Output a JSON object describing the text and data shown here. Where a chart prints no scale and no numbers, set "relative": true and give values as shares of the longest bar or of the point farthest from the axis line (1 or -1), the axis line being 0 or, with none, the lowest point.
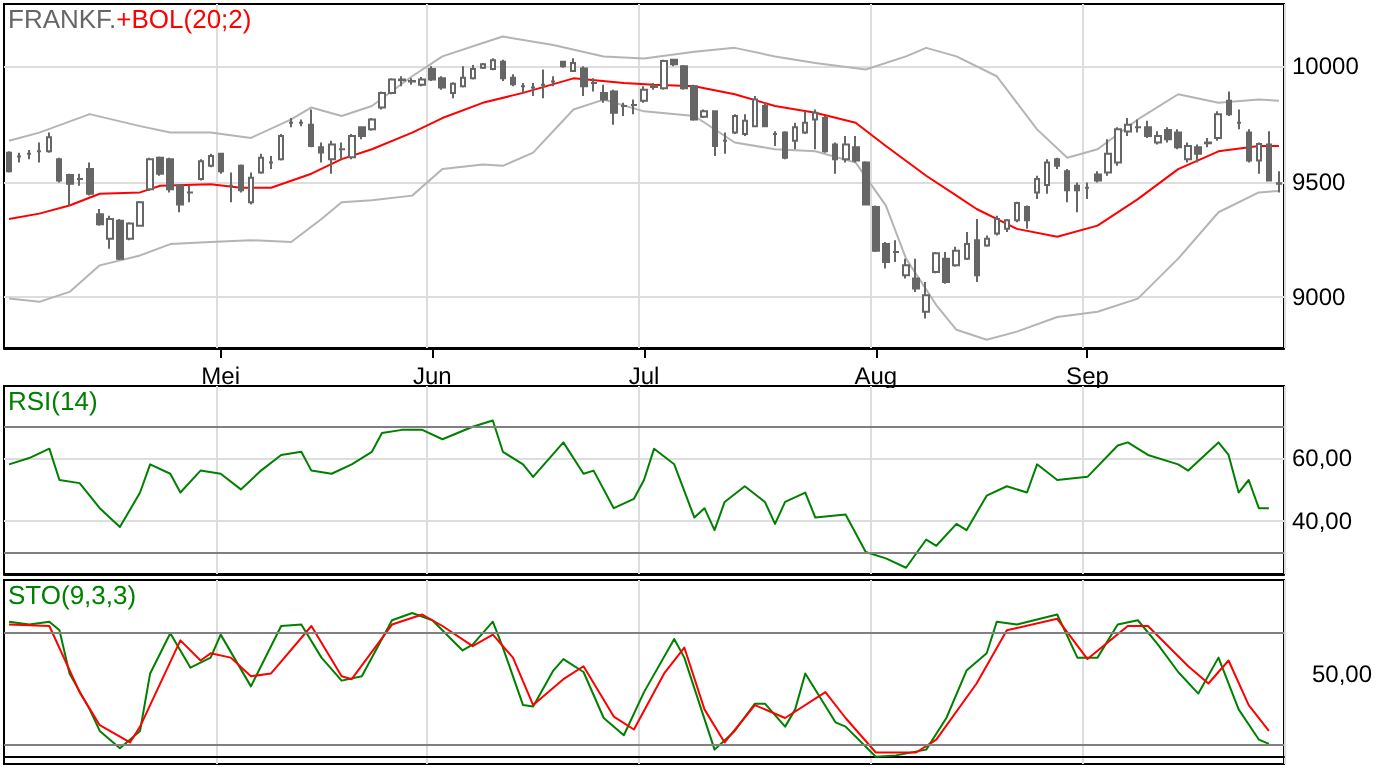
{
  "chart_data": [
    {
      "type": "candlestick",
      "title": "FRANKF.",
      "color": "#666666",
      "marker": "none",
      "grid": true,
      "categories": [
        null,
        null,
        null,
        null,
        null,
        null,
        null,
        null,
        null,
        null,
        null,
        null,
        null,
        null,
        null,
        null,
        null,
        null,
        null,
        null,
        null,
        "Mei",
        null,
        null,
        null,
        null,
        null,
        null,
        null,
        null,
        null,
        null,
        null,
        null,
        null,
        null,
        null,
        null,
        null,
        null,
        null,
        null,
        "Jun",
        null,
        null,
        null,
        null,
        null,
        null,
        null,
        null,
        null,
        null,
        null,
        null,
        null,
        null,
        null,
        null,
        null,
        null,
        null,
        null,
        "Jul",
        null,
        null,
        null,
        null,
        null,
        null,
        null,
        null,
        null,
        null,
        null,
        null,
        null,
        null,
        null,
        null,
        null,
        null,
        null,
        null,
        null,
        null,
        "Aug",
        null,
        null,
        null,
        null,
        null,
        null,
        null,
        null,
        null,
        null,
        null,
        null,
        null,
        null,
        null,
        null,
        null,
        null,
        null,
        null,
        "Sep",
        null,
        null,
        null,
        null,
        null,
        null,
        null,
        null,
        null,
        null,
        null,
        null,
        null,
        null,
        null,
        null,
        null,
        null,
        null
      ],
      "ylim": [
        8780,
        10270
      ],
      "yticks": [
        9000,
        9500,
        10000
      ],
      "ohlc": [
        [
          9626,
          9632,
          9540,
          9546
        ],
        [
          9609,
          9626,
          9583,
          9609
        ],
        [
          9621,
          9638,
          9598,
          9621
        ],
        [
          9632,
          9670,
          9583,
          9632
        ],
        [
          9632,
          9713,
          9626,
          9693
        ],
        [
          9598,
          9604,
          9497,
          9506
        ],
        [
          9529,
          9535,
          9397,
          9491
        ],
        [
          9512,
          9535,
          9483,
          9512
        ],
        [
          9555,
          9583,
          9440,
          9448
        ],
        [
          9359,
          9382,
          9310,
          9316
        ],
        [
          9253,
          9353,
          9210,
          9339
        ],
        [
          9331,
          9339,
          9161,
          9167
        ],
        [
          9253,
          9325,
          9247,
          9319
        ],
        [
          9310,
          9417,
          9305,
          9411
        ],
        [
          9468,
          9604,
          9460,
          9598
        ],
        [
          9604,
          9609,
          9526,
          9535
        ],
        [
          9598,
          9604,
          9454,
          9468
        ],
        [
          9483,
          9489,
          9368,
          9402
        ],
        [
          9454,
          9483,
          9411,
          9454
        ],
        [
          9512,
          9598,
          9506,
          9589
        ],
        [
          9569,
          9621,
          9563,
          9612
        ],
        [
          9621,
          9626,
          9535,
          9546
        ],
        [
          9483,
          9540,
          9411,
          9483
        ],
        [
          9569,
          9575,
          9454,
          9463
        ],
        [
          9411,
          9540,
          9402,
          9517
        ],
        [
          9540,
          9621,
          9535,
          9604
        ],
        [
          9583,
          9612,
          9555,
          9583
        ],
        [
          9598,
          9707,
          9592,
          9698
        ],
        [
          9756,
          9776,
          9736,
          9756
        ],
        [
          9756,
          9770,
          9741,
          9756
        ],
        [
          9747,
          9813,
          9650,
          9655
        ],
        [
          9650,
          9670,
          9583,
          9627
        ],
        [
          9598,
          9678,
          9535,
          9661
        ],
        [
          9641,
          9670,
          9598,
          9641
        ],
        [
          9606,
          9707,
          9598,
          9698
        ],
        [
          9736,
          9741,
          9684,
          9698
        ],
        [
          9727,
          9776,
          9721,
          9770
        ],
        [
          9822,
          9891,
          9813,
          9885
        ],
        [
          9885,
          9948,
          9879,
          9943
        ],
        [
          9943,
          9957,
          9914,
          9940
        ],
        [
          9937,
          9948,
          9920,
          9934
        ],
        [
          9920,
          9954,
          9914,
          9943
        ],
        [
          9989,
          10000,
          9937,
          9943
        ],
        [
          9948,
          9957,
          9899,
          9908
        ],
        [
          9885,
          9931,
          9862,
          9925
        ],
        [
          9914,
          10000,
          9908,
          9951
        ],
        [
          9948,
          10006,
          9943,
          9989
        ],
        [
          9994,
          10014,
          9989,
          10009
        ],
        [
          9989,
          10035,
          9983,
          10026
        ],
        [
          10020,
          10029,
          9937,
          9948
        ],
        [
          9951,
          9966,
          9914,
          9922
        ],
        [
          9914,
          9928,
          9885,
          9914
        ],
        [
          9908,
          9928,
          9871,
          9908
        ],
        [
          9920,
          9986,
          9862,
          9920
        ],
        [
          9934,
          9957,
          9914,
          9934
        ],
        [
          10020,
          10023,
          9994,
          10000
        ],
        [
          9980,
          10035,
          9977,
          10014
        ],
        [
          9991,
          10000,
          9871,
          9914
        ],
        [
          9928,
          9948,
          9891,
          9928
        ],
        [
          9885,
          9920,
          9842,
          9856
        ],
        [
          9891,
          9899,
          9747,
          9799
        ],
        [
          9828,
          9842,
          9785,
          9828
        ],
        [
          9833,
          9856,
          9793,
          9833
        ],
        [
          9851,
          9914,
          9842,
          9899
        ],
        [
          9914,
          9928,
          9899,
          9911
        ],
        [
          9905,
          10029,
          9899,
          10023
        ],
        [
          10029,
          10029,
          10000,
          10009
        ],
        [
          10000,
          10006,
          9899,
          9905
        ],
        [
          9914,
          9920,
          9764,
          9770
        ],
        [
          9782,
          9813,
          9776,
          9805
        ],
        [
          9805,
          9810,
          9612,
          9655
        ],
        [
          9678,
          9713,
          9621,
          9678
        ],
        [
          9713,
          9793,
          9707,
          9785
        ],
        [
          9707,
          9793,
          9698,
          9764
        ],
        [
          9741,
          9871,
          9736,
          9856
        ],
        [
          9828,
          9842,
          9736,
          9741
        ],
        [
          9707,
          9719,
          9655,
          9707
        ],
        [
          9713,
          9719,
          9598,
          9604
        ],
        [
          9678,
          9756,
          9641,
          9736
        ],
        [
          9713,
          9805,
          9707,
          9756
        ],
        [
          9770,
          9813,
          9641,
          9799
        ],
        [
          9776,
          9785,
          9626,
          9632
        ],
        [
          9661,
          9670,
          9535,
          9598
        ],
        [
          9598,
          9698,
          9583,
          9661
        ],
        [
          9650,
          9698,
          9583,
          9592
        ],
        [
          9583,
          9589,
          9397,
          9402
        ],
        [
          9391,
          9397,
          9196,
          9201
        ],
        [
          9230,
          9239,
          9124,
          9152
        ],
        [
          9196,
          9247,
          9152,
          9196
        ],
        [
          9095,
          9167,
          9081,
          9138
        ],
        [
          9081,
          9167,
          9023,
          9038
        ],
        [
          8937,
          9066,
          8908,
          9009
        ],
        [
          9109,
          9196,
          9104,
          9190
        ],
        [
          9167,
          9196,
          9058,
          9066
        ],
        [
          9138,
          9219,
          9132,
          9201
        ],
        [
          9167,
          9282,
          9161,
          9230
        ],
        [
          9247,
          9339,
          9066,
          9095
        ],
        [
          9224,
          9267,
          9219,
          9253
        ],
        [
          9276,
          9353,
          9267,
          9339
        ],
        [
          9296,
          9339,
          9282,
          9333
        ],
        [
          9333,
          9414,
          9325,
          9408
        ],
        [
          9391,
          9397,
          9296,
          9333
        ],
        [
          9454,
          9526,
          9425,
          9512
        ],
        [
          9486,
          9598,
          9448,
          9583
        ],
        [
          9598,
          9604,
          9555,
          9569
        ],
        [
          9546,
          9555,
          9411,
          9463
        ],
        [
          9483,
          9497,
          9368,
          9463
        ],
        [
          9474,
          9497,
          9425,
          9474
        ],
        [
          9532,
          9546,
          9497,
          9506
        ],
        [
          9540,
          9684,
          9526,
          9621
        ],
        [
          9583,
          9736,
          9569,
          9727
        ],
        [
          9718,
          9776,
          9698,
          9747
        ],
        [
          9736,
          9770,
          9713,
          9736
        ],
        [
          9736,
          9764,
          9690,
          9698
        ],
        [
          9670,
          9719,
          9661,
          9698
        ],
        [
          9724,
          9736,
          9670,
          9684
        ],
        [
          9713,
          9727,
          9641,
          9650
        ],
        [
          9598,
          9670,
          9583,
          9655
        ],
        [
          9650,
          9661,
          9583,
          9621
        ],
        [
          9670,
          9690,
          9650,
          9667
        ],
        [
          9690,
          9805,
          9678,
          9793
        ],
        [
          9851,
          9891,
          9785,
          9793
        ],
        [
          9756,
          9813,
          9727,
          9756
        ],
        [
          9713,
          9727,
          9583,
          9592
        ],
        [
          9592,
          9670,
          9535,
          9664
        ],
        [
          9661,
          9719,
          9506,
          9506
        ],
        [
          9494,
          9546,
          9454,
          9491
        ]
      ],
      "series": [
        {
          "type": "line",
          "color": "#b4b4b4",
          "values": [
            9678,
            null,
            null,
            9713,
            null,
            null,
            null,
            null,
            9793,
            null,
            null,
            null,
            null,
            9741,
            null,
            null,
            9713,
            null,
            null,
            null,
            9713,
            null,
            null,
            null,
            9690,
            null,
            null,
            null,
            9770,
            null,
            9822,
            null,
            null,
            9785,
            null,
            null,
            9828,
            null,
            null,
            null,
            9957,
            null,
            null,
            10043,
            null,
            null,
            null,
            10101,
            null,
            10129,
            null,
            null,
            null,
            null,
            10092,
            null,
            null,
            null,
            null,
            10043,
            null,
            null,
            null,
            10034,
            null,
            null,
            null,
            null,
            10063,
            null,
            null,
            null,
            10080,
            null,
            null,
            null,
            10043,
            null,
            null,
            null,
            10014,
            null,
            null,
            null,
            null,
            9986,
            null,
            null,
            null,
            10043,
            null,
            10080,
            null,
            null,
            10043,
            null,
            null,
            null,
            9957,
            null,
            null,
            null,
            9727,
            null,
            null,
            9604,
            null,
            null,
            9641,
            null,
            null,
            null,
            9770,
            null,
            null,
            null,
            9879,
            null,
            null,
            null,
            9842,
            null,
            null,
            null,
            9856,
            null,
            9851
          ]
        },
        {
          "type": "line",
          "color": "#b4b4b4",
          "values": [
            8994,
            null,
            null,
            8980,
            null,
            null,
            9023,
            null,
            null,
            9138,
            null,
            null,
            null,
            9181,
            null,
            null,
            9230,
            null,
            null,
            null,
            9239,
            null,
            null,
            null,
            9247,
            null,
            null,
            null,
            9239,
            null,
            null,
            9339,
            null,
            9411,
            null,
            null,
            9420,
            null,
            null,
            null,
            9440,
            null,
            null,
            9555,
            null,
            null,
            null,
            9575,
            null,
            9569,
            null,
            null,
            9626,
            null,
            null,
            null,
            9813,
            null,
            null,
            9856,
            null,
            null,
            null,
            9805,
            null,
            null,
            null,
            null,
            9785,
            null,
            null,
            null,
            9670,
            null,
            null,
            null,
            9641,
            null,
            null,
            null,
            9632,
            null,
            null,
            null,
            9583,
            null,
            null,
            9397,
            null,
            9167,
            null,
            null,
            8966,
            null,
            8859,
            null,
            null,
            8816,
            null,
            null,
            8851,
            null,
            null,
            null,
            8914,
            null,
            null,
            null,
            8937,
            null,
            null,
            null,
            8994,
            null,
            null,
            null,
            9167,
            null,
            null,
            null,
            9368,
            null,
            null,
            null,
            9454,
            null,
            9460
          ]
        },
        {
          "type": "line",
          "name": "+BOL(20;2)",
          "color": "#ff0000",
          "values": [
            9339,
            null,
            null,
            9362,
            null,
            null,
            9397,
            null,
            null,
            9448,
            null,
            null,
            null,
            9454,
            null,
            9483,
            null,
            null,
            null,
            null,
            9489,
            null,
            null,
            9474,
            null,
            null,
            9474,
            null,
            null,
            null,
            9535,
            null,
            null,
            9598,
            null,
            null,
            9641,
            null,
            null,
            null,
            9713,
            null,
            null,
            9776,
            null,
            null,
            null,
            9842,
            null,
            null,
            null,
            9885,
            null,
            null,
            null,
            null,
            9948,
            null,
            null,
            null,
            null,
            9928,
            null,
            null,
            9920,
            null,
            null,
            null,
            9914,
            null,
            null,
            null,
            9879,
            null,
            null,
            null,
            9828,
            null,
            null,
            null,
            9799,
            null,
            null,
            null,
            9756,
            null,
            null,
            9655,
            null,
            null,
            null,
            9526,
            null,
            null,
            9440,
            null,
            9382,
            null,
            null,
            null,
            9296,
            null,
            null,
            null,
            9262,
            null,
            null,
            null,
            9310,
            null,
            null,
            null,
            9425,
            null,
            null,
            null,
            9555,
            null,
            null,
            null,
            9632,
            null,
            null,
            null,
            9655,
            null,
            9655
          ]
        }
      ]
    },
    {
      "type": "line",
      "title": "RSI(14)",
      "marker": "none",
      "grid": true,
      "tick_labels": "y",
      "ylim": [
        23,
        83
      ],
      "yticks": [
        {
          "value": 40,
          "label": "40,00"
        },
        {
          "value": 60,
          "label": "60,00"
        }
      ],
      "ref_lines": [
        {
          "axis": "y",
          "value": 70,
          "color": "#808080"
        },
        {
          "axis": "y",
          "value": 30,
          "color": "#808080"
        }
      ],
      "series": [
        {
          "color": "#008000",
          "values": [
            58,
            null,
            60,
            null,
            63,
            53,
            null,
            52,
            null,
            44,
            null,
            38,
            null,
            49,
            58,
            null,
            55,
            49,
            null,
            56,
            null,
            55,
            null,
            50,
            null,
            56,
            null,
            61,
            null,
            62,
            56,
            null,
            55,
            null,
            58,
            null,
            62,
            68,
            null,
            69,
            null,
            69,
            null,
            66,
            null,
            null,
            70,
            null,
            72,
            62,
            null,
            58,
            54,
            null,
            null,
            65,
            null,
            55,
            56,
            null,
            44,
            null,
            47,
            53,
            63,
            null,
            58,
            null,
            41,
            44,
            37,
            46,
            null,
            51,
            null,
            46,
            39,
            46,
            null,
            49,
            41,
            null,
            null,
            42,
            null,
            30,
            null,
            28,
            null,
            25,
            null,
            34,
            32,
            null,
            39,
            37,
            null,
            48,
            null,
            51,
            null,
            49,
            58,
            null,
            53,
            null,
            null,
            54,
            null,
            null,
            64,
            65,
            null,
            61,
            null,
            null,
            58,
            56,
            null,
            null,
            65,
            61,
            49,
            53,
            44,
            44,
            null
          ]
        }
      ]
    },
    {
      "type": "line",
      "title": "STO(9,3,3)",
      "marker": "none",
      "grid": true,
      "tick_labels": false,
      "relative": true,
      "annotations": [
        "50,00"
      ],
      "ref_lines": [
        {
          "axis": "y",
          "value": 0.86,
          "color": "#808080"
        },
        {
          "axis": "y",
          "value": 0.09,
          "color": "#808080"
        }
      ],
      "series": [
        {
          "color": "#008000",
          "values": [
            0.94,
            null,
            0.92,
            null,
            0.94,
            0.88,
            0.58,
            null,
            0.33,
            0.18,
            null,
            0.06,
            null,
            0.18,
            0.58,
            null,
            0.86,
            null,
            0.62,
            null,
            0.69,
            0.85,
            null,
            null,
            0.49,
            0.63,
            null,
            0.91,
            null,
            0.92,
            null,
            0.69,
            null,
            0.53,
            null,
            0.56,
            null,
            null,
            0.95,
            null,
            1,
            null,
            0.95,
            null,
            null,
            0.74,
            0.78,
            null,
            0.94,
            0.76,
            null,
            0.36,
            0.35,
            null,
            0.6,
            0.68,
            null,
            0.59,
            null,
            0.27,
            null,
            0.15,
            null,
            0.45,
            null,
            null,
            0.82,
            0.69,
            null,
            null,
            0.05,
            null,
            0.18,
            null,
            0.37,
            0.37,
            null,
            0.21,
            0.33,
            0.58,
            null,
            null,
            0.24,
            0.21,
            null,
            null,
            0,
            null,
            0.01,
            null,
            null,
            0.05,
            null,
            0.27,
            null,
            0.6,
            null,
            0.72,
            0.94,
            null,
            0.92,
            null,
            null,
            null,
            0.99,
            null,
            0.69,
            null,
            0.69,
            null,
            0.92,
            null,
            0.95,
            null,
            0.78,
            null,
            0.59,
            null,
            0.44,
            null,
            0.69,
            null,
            0.33,
            null,
            0.12,
            0.09,
            null
          ]
        },
        {
          "color": "#ff0000",
          "values": [
            0.92,
            null,
            null,
            null,
            0.91,
            null,
            null,
            0.45,
            null,
            0.22,
            null,
            null,
            0.1,
            0.21,
            null,
            null,
            null,
            0.81,
            null,
            0.67,
            0.72,
            null,
            0.69,
            null,
            0.56,
            null,
            0.58,
            null,
            null,
            null,
            0.91,
            null,
            null,
            0.56,
            0.54,
            null,
            null,
            null,
            0.92,
            null,
            null,
            0.99,
            null,
            0.91,
            null,
            null,
            0.77,
            null,
            0.85,
            null,
            0.69,
            null,
            0.36,
            null,
            null,
            0.54,
            null,
            0.63,
            null,
            null,
            0.28,
            null,
            0.19,
            null,
            null,
            0.58,
            null,
            0.76,
            null,
            0.33,
            null,
            0.1,
            null,
            null,
            0.36,
            null,
            null,
            0.27,
            null,
            null,
            null,
            0.45,
            null,
            0.27,
            null,
            null,
            0.03,
            null,
            null,
            null,
            0.03,
            null,
            0.12,
            null,
            null,
            null,
            0.51,
            null,
            null,
            0.88,
            null,
            null,
            null,
            null,
            0.96,
            null,
            null,
            0.68,
            null,
            null,
            null,
            0.91,
            null,
            0.91,
            null,
            null,
            null,
            0.63,
            null,
            0.51,
            null,
            0.67,
            null,
            0.36,
            null,
            0.18,
            null
          ]
        }
      ]
    }
  ]
}
